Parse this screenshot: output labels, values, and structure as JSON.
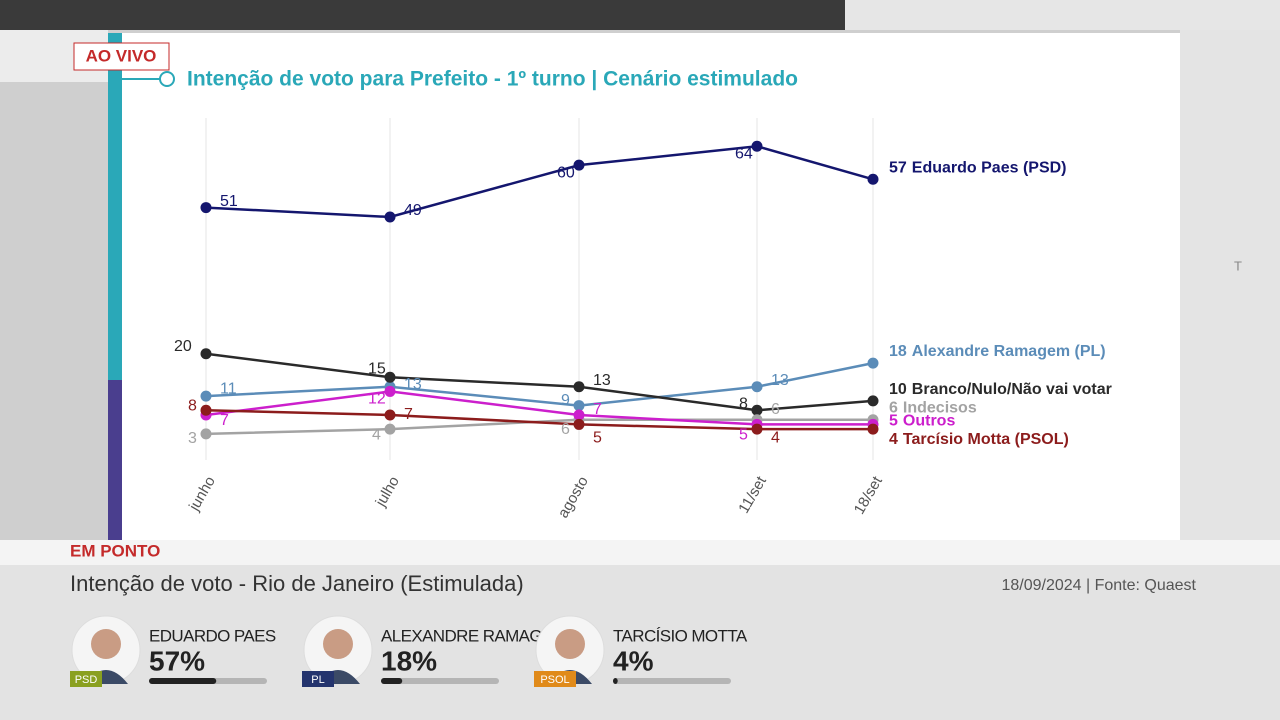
{
  "live_badge": "AO VIVO",
  "logo": "news",
  "side_glyph": "T",
  "chart_data": {
    "type": "line",
    "title": "Intenção de voto para Prefeito - 1º turno | Cenário estimulado",
    "categories": [
      "junho",
      "julho",
      "agosto",
      "11/set",
      "18/set"
    ],
    "ylim": [
      0,
      70
    ],
    "grid": true,
    "series": [
      {
        "name": "Eduardo Paes (PSD)",
        "color": "#14166e",
        "values": [
          51,
          49,
          60,
          64,
          57
        ]
      },
      {
        "name": "Alexandre Ramagem (PL)",
        "color": "#5b8cb8",
        "values": [
          11,
          13,
          9,
          13,
          18
        ]
      },
      {
        "name": "Branco/Nulo/Não vai votar",
        "color": "#2a2a2a",
        "values": [
          20,
          15,
          13,
          8,
          10
        ]
      },
      {
        "name": "Indecisos",
        "color": "#a3a3a3",
        "values": [
          3,
          4,
          6,
          6,
          6
        ]
      },
      {
        "name": "Outros",
        "color": "#cc1fcc",
        "values": [
          7,
          12,
          7,
          5,
          5
        ]
      },
      {
        "name": "Tarcísio Motta (PSOL)",
        "color": "#8c1c1c",
        "values": [
          8,
          7,
          5,
          4,
          4
        ]
      }
    ]
  },
  "ticker": {
    "label": "EM PONTO",
    "headline": "Intenção de voto - Rio de Janeiro (Estimulada)",
    "date": "18/09/2024",
    "source": "Fonte: Quaest",
    "candidates": [
      {
        "name": "EDUARDO PAES",
        "party": "PSD",
        "value": 57,
        "value_label": "57%"
      },
      {
        "name": "ALEXANDRE RAMAGEM",
        "party": "PL",
        "value": 18,
        "value_label": "18%"
      },
      {
        "name": "TARCÍSIO MOTTA",
        "party": "PSOL",
        "value": 4,
        "value_label": "4%"
      }
    ]
  }
}
